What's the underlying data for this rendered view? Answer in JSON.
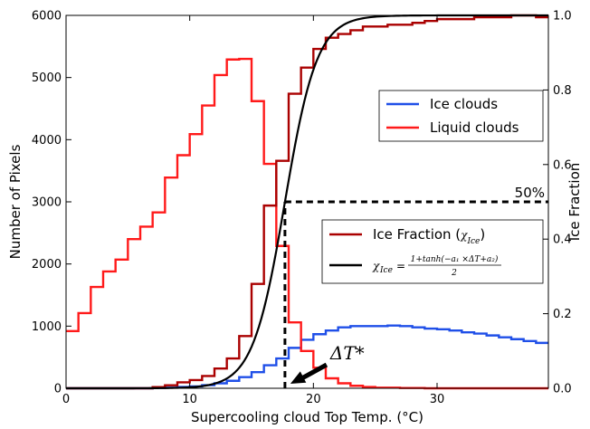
{
  "chart_data": {
    "type": "line",
    "step_style": "histogram",
    "xlabel": "Supercooling cloud Top Temp. (°C)",
    "ylabel_left": "Number of Pixels",
    "ylabel_right": "Ice Fraction",
    "xlim": [
      0,
      39
    ],
    "ylim_left": [
      0,
      6000
    ],
    "ylim_right": [
      0,
      1.0
    ],
    "x_ticks": [
      0,
      10,
      20,
      30
    ],
    "y_ticks_left": [
      0,
      1000,
      2000,
      3000,
      4000,
      5000,
      6000
    ],
    "y_ticks_right": [
      "0.0",
      "0.2",
      "0.4",
      "0.6",
      "0.8",
      "1.0"
    ],
    "bin_edges": [
      0,
      1,
      2,
      3,
      4,
      5,
      6,
      7,
      8,
      9,
      10,
      11,
      12,
      13,
      14,
      15,
      16,
      17,
      18,
      19,
      20,
      21,
      22,
      23,
      24,
      25,
      26,
      27,
      28,
      29,
      30,
      31,
      32,
      33,
      34,
      35,
      36,
      37,
      38,
      39
    ],
    "series": [
      {
        "name": "Ice clouds",
        "axis": "left",
        "color": "#1f4fe8",
        "values": [
          0,
          0,
          0,
          0,
          0,
          0,
          0,
          5,
          10,
          20,
          30,
          50,
          80,
          120,
          180,
          260,
          370,
          480,
          650,
          780,
          870,
          930,
          980,
          1000,
          1000,
          1000,
          1010,
          1000,
          980,
          960,
          950,
          930,
          900,
          880,
          850,
          820,
          790,
          760,
          730
        ]
      },
      {
        "name": "Liquid clouds",
        "axis": "left",
        "color": "#ff1a1a",
        "values": [
          920,
          1210,
          1630,
          1880,
          2070,
          2400,
          2600,
          2830,
          3390,
          3750,
          4090,
          4550,
          5040,
          5290,
          5300,
          4620,
          3610,
          2290,
          1060,
          600,
          330,
          160,
          80,
          40,
          20,
          10,
          10,
          5,
          5,
          0,
          0,
          0,
          0,
          0,
          0,
          0,
          0,
          0,
          0
        ]
      },
      {
        "name": "Ice Fraction (χIce)",
        "axis": "right",
        "color": "#aa0000",
        "values": [
          0,
          0,
          0,
          0,
          0,
          0,
          0,
          0.003,
          0.008,
          0.016,
          0.022,
          0.033,
          0.053,
          0.08,
          0.14,
          0.28,
          0.49,
          0.61,
          0.79,
          0.86,
          0.91,
          0.94,
          0.95,
          0.96,
          0.97,
          0.97,
          0.975,
          0.975,
          0.98,
          0.985,
          0.99,
          0.99,
          0.99,
          0.995,
          0.995,
          0.995,
          1.0,
          1.0,
          0.995
        ]
      },
      {
        "name": "χIce = (1 + tanh(−a1 × ΔT + a2)) / 2",
        "axis": "right",
        "color": "#000000",
        "function": "sigmoid",
        "center": 17.7,
        "scale": 2.6
      }
    ],
    "annotations": {
      "fifty_percent": "50%",
      "delta_t": "ΔT*",
      "threshold_x": 17.7,
      "threshold_y": 0.5
    },
    "legends": [
      {
        "position": "upper-right",
        "entries": [
          "Ice clouds",
          "Liquid clouds"
        ]
      },
      {
        "position": "center-right",
        "entries": [
          "Ice Fraction (χIce)",
          "χIce = (1 + tanh(−a1 × ΔT + a2)) / 2"
        ]
      }
    ],
    "grid": false
  },
  "text": {
    "ice_fraction_prefix": "Ice Fraction (",
    "chi": "χ",
    "ice_sub": "Ice",
    "close_paren": ")",
    "formula_eq": "=",
    "formula_num": "1+tanh(−a₁ ×ΔT+a₂)",
    "formula_den": "2"
  }
}
